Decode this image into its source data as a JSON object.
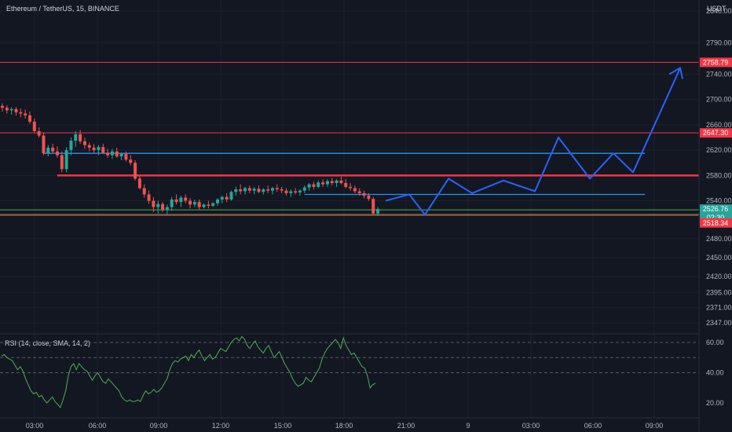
{
  "header": {
    "symbol": "Ethereum / TetherUS, 15, BINANCE",
    "currency": "USDT"
  },
  "colors": {
    "background": "#131722",
    "grid": "#1e222d",
    "up": "#26a69a",
    "down": "#ef5350",
    "resistance": "#f23645",
    "support_blue": "#2962ff",
    "range_line": "#2196f3",
    "rsi_line": "#4caf50",
    "current_price": "#26a69a",
    "support_green": "#4caf50"
  },
  "price_axis": {
    "ticks": [
      "2840.00",
      "2790.00",
      "2740.00",
      "2700.00",
      "2660.00",
      "2620.00",
      "2580.00",
      "2540.00",
      "2480.00",
      "2450.00",
      "2420.00",
      "2395.00",
      "2371.00",
      "2347.00"
    ],
    "badges": [
      {
        "text": "2758.79",
        "color": "#f23645"
      },
      {
        "text": "2647.30",
        "color": "#f23645"
      },
      {
        "text": "2526.76",
        "color": "#26a69a"
      },
      {
        "text": "02:30",
        "color": "#26a69a"
      },
      {
        "text": "2518.34",
        "color": "#f23645"
      }
    ]
  },
  "time_axis": {
    "labels": [
      "03:00",
      "06:00",
      "09:00",
      "12:00",
      "15:00",
      "18:00",
      "21:00",
      "9",
      "03:00",
      "06:00",
      "09:00"
    ]
  },
  "rsi": {
    "title": "RSI (14, close, SMA, 14, 2)",
    "ticks": [
      "60.00",
      "40.00",
      "20.00"
    ],
    "levels": [
      60,
      50,
      40
    ],
    "values": [
      51,
      52,
      50,
      49,
      48,
      45,
      42,
      44,
      41,
      36,
      32,
      28,
      26,
      27,
      24,
      25,
      22,
      20,
      22,
      24,
      21,
      19,
      17,
      22,
      28,
      38,
      44,
      46,
      42,
      46,
      44,
      42,
      41,
      38,
      35,
      38,
      40,
      37,
      34,
      33,
      36,
      34,
      32,
      30,
      28,
      24,
      22,
      21,
      22,
      21,
      21,
      22,
      21,
      25,
      28,
      26,
      27,
      29,
      27,
      28,
      30,
      33,
      36,
      42,
      46,
      48,
      47,
      49,
      50,
      51,
      48,
      52,
      50,
      53,
      55,
      51,
      48,
      50,
      52,
      49,
      50,
      53,
      56,
      55,
      54,
      57,
      60,
      62,
      63,
      61,
      64,
      62,
      58,
      56,
      59,
      61,
      57,
      55,
      53,
      56,
      58,
      54,
      50,
      52,
      54,
      50,
      46,
      43,
      40,
      36,
      33,
      31,
      32,
      33,
      37,
      35,
      34,
      37,
      40,
      43,
      49,
      53,
      56,
      58,
      60,
      62,
      60,
      56,
      63,
      58,
      55,
      52,
      53,
      50,
      47,
      44,
      43,
      38,
      30,
      32,
      33
    ]
  },
  "chart_data": {
    "type": "candlestick",
    "title": "Ethereum / TetherUS, 15, BINANCE",
    "y_unit": "USDT",
    "ylim": [
      2347,
      2840
    ],
    "x_time_labels": [
      "03:00",
      "06:00",
      "09:00",
      "12:00",
      "15:00",
      "18:00",
      "21:00",
      "9",
      "03:00",
      "06:00",
      "09:00"
    ],
    "candles": [
      {
        "o": 2690,
        "h": 2694,
        "l": 2681,
        "c": 2687
      },
      {
        "o": 2687,
        "h": 2691,
        "l": 2678,
        "c": 2683
      },
      {
        "o": 2683,
        "h": 2688,
        "l": 2676,
        "c": 2685
      },
      {
        "o": 2685,
        "h": 2688,
        "l": 2675,
        "c": 2680
      },
      {
        "o": 2680,
        "h": 2686,
        "l": 2672,
        "c": 2678
      },
      {
        "o": 2678,
        "h": 2684,
        "l": 2670,
        "c": 2675
      },
      {
        "o": 2675,
        "h": 2681,
        "l": 2662,
        "c": 2665
      },
      {
        "o": 2665,
        "h": 2670,
        "l": 2648,
        "c": 2650
      },
      {
        "o": 2650,
        "h": 2656,
        "l": 2640,
        "c": 2643
      },
      {
        "o": 2643,
        "h": 2648,
        "l": 2612,
        "c": 2615
      },
      {
        "o": 2615,
        "h": 2628,
        "l": 2610,
        "c": 2624
      },
      {
        "o": 2624,
        "h": 2630,
        "l": 2615,
        "c": 2618
      },
      {
        "o": 2618,
        "h": 2626,
        "l": 2608,
        "c": 2612
      },
      {
        "o": 2612,
        "h": 2618,
        "l": 2585,
        "c": 2590
      },
      {
        "o": 2590,
        "h": 2625,
        "l": 2585,
        "c": 2620
      },
      {
        "o": 2620,
        "h": 2640,
        "l": 2612,
        "c": 2635
      },
      {
        "o": 2635,
        "h": 2650,
        "l": 2625,
        "c": 2645
      },
      {
        "o": 2645,
        "h": 2652,
        "l": 2630,
        "c": 2634
      },
      {
        "o": 2634,
        "h": 2640,
        "l": 2622,
        "c": 2628
      },
      {
        "o": 2628,
        "h": 2632,
        "l": 2618,
        "c": 2624
      },
      {
        "o": 2624,
        "h": 2630,
        "l": 2616,
        "c": 2620
      },
      {
        "o": 2620,
        "h": 2628,
        "l": 2612,
        "c": 2625
      },
      {
        "o": 2625,
        "h": 2630,
        "l": 2614,
        "c": 2616
      },
      {
        "o": 2616,
        "h": 2622,
        "l": 2608,
        "c": 2612
      },
      {
        "o": 2612,
        "h": 2622,
        "l": 2606,
        "c": 2618
      },
      {
        "o": 2618,
        "h": 2624,
        "l": 2608,
        "c": 2610
      },
      {
        "o": 2610,
        "h": 2616,
        "l": 2604,
        "c": 2614
      },
      {
        "o": 2614,
        "h": 2618,
        "l": 2602,
        "c": 2605
      },
      {
        "o": 2605,
        "h": 2612,
        "l": 2596,
        "c": 2600
      },
      {
        "o": 2600,
        "h": 2604,
        "l": 2572,
        "c": 2575
      },
      {
        "o": 2575,
        "h": 2580,
        "l": 2558,
        "c": 2560
      },
      {
        "o": 2560,
        "h": 2566,
        "l": 2545,
        "c": 2550
      },
      {
        "o": 2550,
        "h": 2556,
        "l": 2535,
        "c": 2540
      },
      {
        "o": 2540,
        "h": 2546,
        "l": 2522,
        "c": 2530
      },
      {
        "o": 2530,
        "h": 2540,
        "l": 2520,
        "c": 2535
      },
      {
        "o": 2535,
        "h": 2538,
        "l": 2522,
        "c": 2526
      },
      {
        "o": 2526,
        "h": 2534,
        "l": 2518,
        "c": 2530
      },
      {
        "o": 2530,
        "h": 2546,
        "l": 2524,
        "c": 2542
      },
      {
        "o": 2542,
        "h": 2550,
        "l": 2534,
        "c": 2538
      },
      {
        "o": 2538,
        "h": 2548,
        "l": 2530,
        "c": 2545
      },
      {
        "o": 2545,
        "h": 2550,
        "l": 2536,
        "c": 2540
      },
      {
        "o": 2540,
        "h": 2544,
        "l": 2528,
        "c": 2534
      },
      {
        "o": 2534,
        "h": 2542,
        "l": 2530,
        "c": 2538
      },
      {
        "o": 2538,
        "h": 2542,
        "l": 2526,
        "c": 2530
      },
      {
        "o": 2530,
        "h": 2536,
        "l": 2528,
        "c": 2534
      },
      {
        "o": 2534,
        "h": 2540,
        "l": 2528,
        "c": 2532
      },
      {
        "o": 2532,
        "h": 2538,
        "l": 2530,
        "c": 2536
      },
      {
        "o": 2536,
        "h": 2544,
        "l": 2532,
        "c": 2542
      },
      {
        "o": 2542,
        "h": 2548,
        "l": 2536,
        "c": 2546
      },
      {
        "o": 2546,
        "h": 2552,
        "l": 2538,
        "c": 2542
      },
      {
        "o": 2542,
        "h": 2556,
        "l": 2540,
        "c": 2554
      },
      {
        "o": 2554,
        "h": 2562,
        "l": 2548,
        "c": 2558
      },
      {
        "o": 2558,
        "h": 2566,
        "l": 2550,
        "c": 2555
      },
      {
        "o": 2555,
        "h": 2562,
        "l": 2550,
        "c": 2560
      },
      {
        "o": 2560,
        "h": 2564,
        "l": 2552,
        "c": 2556
      },
      {
        "o": 2556,
        "h": 2562,
        "l": 2550,
        "c": 2559
      },
      {
        "o": 2559,
        "h": 2564,
        "l": 2552,
        "c": 2554
      },
      {
        "o": 2554,
        "h": 2560,
        "l": 2550,
        "c": 2558
      },
      {
        "o": 2558,
        "h": 2564,
        "l": 2552,
        "c": 2556
      },
      {
        "o": 2556,
        "h": 2562,
        "l": 2550,
        "c": 2560
      },
      {
        "o": 2560,
        "h": 2566,
        "l": 2554,
        "c": 2558
      },
      {
        "o": 2558,
        "h": 2562,
        "l": 2552,
        "c": 2556
      },
      {
        "o": 2556,
        "h": 2560,
        "l": 2548,
        "c": 2552
      },
      {
        "o": 2552,
        "h": 2558,
        "l": 2546,
        "c": 2555
      },
      {
        "o": 2555,
        "h": 2560,
        "l": 2550,
        "c": 2553
      },
      {
        "o": 2553,
        "h": 2558,
        "l": 2548,
        "c": 2556
      },
      {
        "o": 2556,
        "h": 2564,
        "l": 2552,
        "c": 2561
      },
      {
        "o": 2561,
        "h": 2568,
        "l": 2556,
        "c": 2566
      },
      {
        "o": 2566,
        "h": 2570,
        "l": 2558,
        "c": 2562
      },
      {
        "o": 2562,
        "h": 2572,
        "l": 2560,
        "c": 2569
      },
      {
        "o": 2569,
        "h": 2574,
        "l": 2562,
        "c": 2566
      },
      {
        "o": 2566,
        "h": 2574,
        "l": 2562,
        "c": 2571
      },
      {
        "o": 2571,
        "h": 2576,
        "l": 2564,
        "c": 2568
      },
      {
        "o": 2568,
        "h": 2574,
        "l": 2562,
        "c": 2572
      },
      {
        "o": 2572,
        "h": 2578,
        "l": 2566,
        "c": 2568
      },
      {
        "o": 2568,
        "h": 2574,
        "l": 2560,
        "c": 2562
      },
      {
        "o": 2562,
        "h": 2568,
        "l": 2556,
        "c": 2560
      },
      {
        "o": 2560,
        "h": 2564,
        "l": 2552,
        "c": 2555
      },
      {
        "o": 2555,
        "h": 2560,
        "l": 2548,
        "c": 2552
      },
      {
        "o": 2552,
        "h": 2556,
        "l": 2544,
        "c": 2548
      },
      {
        "o": 2548,
        "h": 2552,
        "l": 2540,
        "c": 2543
      },
      {
        "o": 2543,
        "h": 2546,
        "l": 2518,
        "c": 2520
      },
      {
        "o": 2520,
        "h": 2530,
        "l": 2516,
        "c": 2527
      }
    ],
    "horizontal_levels": [
      {
        "price": 2758.79,
        "color": "#f23645",
        "style": "thin"
      },
      {
        "price": 2647.3,
        "color": "#f23645",
        "style": "thin"
      },
      {
        "price": 2580,
        "color": "#f23645",
        "style": "thick"
      },
      {
        "price": 2522,
        "color": "#4caf50",
        "style": "double"
      }
    ],
    "segment_levels": [
      {
        "price": 2615,
        "color": "#2196f3",
        "from_candle": 9,
        "to": "projection_end"
      },
      {
        "price": 2550,
        "color": "#2196f3",
        "from_candle": 66,
        "to": "projection_end"
      }
    ],
    "projection": {
      "color": "#2962ff",
      "points": [
        {
          "bars_ahead": 2,
          "price": 2540
        },
        {
          "bars_ahead": 8,
          "price": 2550
        },
        {
          "bars_ahead": 12,
          "price": 2518
        },
        {
          "bars_ahead": 18,
          "price": 2575
        },
        {
          "bars_ahead": 24,
          "price": 2552
        },
        {
          "bars_ahead": 32,
          "price": 2572
        },
        {
          "bars_ahead": 40,
          "price": 2555
        },
        {
          "bars_ahead": 46,
          "price": 2640
        },
        {
          "bars_ahead": 54,
          "price": 2575
        },
        {
          "bars_ahead": 60,
          "price": 2615
        },
        {
          "bars_ahead": 65,
          "price": 2585
        },
        {
          "bars_ahead": 77,
          "price": 2750
        }
      ]
    }
  }
}
